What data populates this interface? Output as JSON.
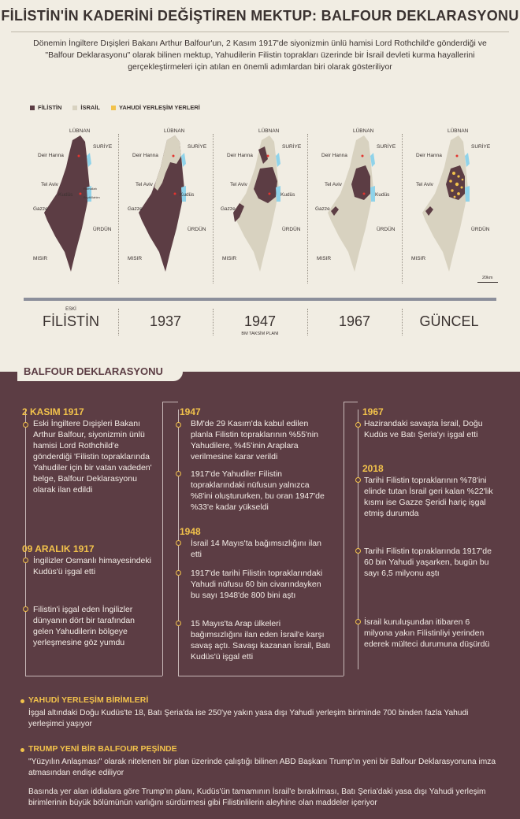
{
  "header": {
    "title": "FİLİSTİN'İN KADERİNİ DEĞİŞTİREN MEKTUP: BALFOUR DEKLARASYONU",
    "intro": "Dönemin İngiltere Dışişleri Bakanı Arthur Balfour'un, 2 Kasım 1917'de siyonizmin ünlü hamisi Lord Rothchild'e gönderdiği ve \"Balfour Deklarasyonu\" olarak bilinen mektup, Yahudilerin Filistin toprakları üzerinde bir İsrail devleti kurma hayallerini gerçekleştirmeleri için atılan en önemli adımlardan biri olarak gösteriliyor"
  },
  "legend": {
    "items": [
      {
        "label": "FİLİSTİN",
        "color": "#5c3d44"
      },
      {
        "label": "İSRAİL",
        "color": "#d8d2c0"
      },
      {
        "label": "YAHUDİ YERLEŞİM YERLERİ",
        "color": "#f2c24b"
      }
    ]
  },
  "map_labels": {
    "lebanon": "LÜBNAN",
    "syria": "SURİYE",
    "jordan": "ÜRDÜN",
    "egypt": "MISIR",
    "deir_hanna": "Deir Hanna",
    "tel_aviv": "Tel Aviv",
    "jerusalem": "Kudüs",
    "gaza": "Gazze",
    "ramallah": "Ramallah",
    "beytullahim": "Beytüllahim"
  },
  "maps": [
    {
      "icon": "map-palestine-historic-icon"
    },
    {
      "icon": "map-palestine-1937-icon"
    },
    {
      "icon": "map-palestine-1947-icon"
    },
    {
      "icon": "map-palestine-1967-icon"
    },
    {
      "icon": "map-palestine-current-icon"
    }
  ],
  "scale": "20km",
  "periods": [
    {
      "pre": "ESKİ",
      "year": "FİLİSTİN",
      "sub": ""
    },
    {
      "pre": "",
      "year": "1937",
      "sub": ""
    },
    {
      "pre": "",
      "year": "1947",
      "sub": "BM TAKSİM PLANI"
    },
    {
      "pre": "",
      "year": "1967",
      "sub": ""
    },
    {
      "pre": "",
      "year": "GÜNCEL",
      "sub": ""
    }
  ],
  "section": {
    "title": "BALFOUR DEKLARASYONU"
  },
  "timeline": {
    "col1": [
      {
        "date": "2 KASIM 1917",
        "text": "Eski İngiltere Dışişleri Bakanı Arthur Balfour, siyonizmin ünlü hamisi Lord Rothchild'e gönderdiği 'Filistin topraklarında Yahudiler için bir vatan vadeden' belge, Balfour Deklarasyonu olarak ilan edildi"
      },
      {
        "date": "09 ARALIK 1917",
        "text": "İngilizler Osmanlı himayesindeki Kudüs'ü işgal etti"
      },
      {
        "date": "",
        "text": "Filistin'i işgal eden İngilizler dünyanın dört bir tarafından gelen Yahudilerin bölgeye yerleşmesine göz yumdu"
      }
    ],
    "col2": [
      {
        "date": "1947",
        "text": "BM'de 29 Kasım'da kabul edilen planla Filistin topraklarının %55'nin Yahudilere, %45'inin Araplara verilmesine karar verildi"
      },
      {
        "date": "",
        "text": "1917'de Yahudiler Filistin topraklarındaki nüfusun yalnızca %8'ini oluştururken, bu oran 1947'de %33'e kadar yükseldi"
      },
      {
        "date": "1948",
        "text": "İsrail 14 Mayıs'ta bağımsızlığını ilan etti"
      },
      {
        "date": "",
        "text": "1917'de tarihi Filistin topraklarındaki Yahudi nüfusu 60 bin civarındayken bu sayı 1948'de 800 bini aştı"
      },
      {
        "date": "",
        "text": "15 Mayıs'ta Arap ülkeleri bağımsızlığını ilan eden İsrail'e karşı savaş açtı. Savaşı kazanan İsrail, Batı Kudüs'ü işgal etti"
      }
    ],
    "col3": [
      {
        "date": "1967",
        "text": "Hazirandaki savaşta İsrail, Doğu Kudüs ve Batı Şeria'yı işgal etti"
      },
      {
        "date": "2018",
        "text": "Tarihi Filistin topraklarının %78'ini elinde tutan İsrail geri kalan %22'lik kısmı ise Gazze Şeridi hariç işgal etmiş durumda"
      },
      {
        "date": "",
        "text": "Tarihi Filistin topraklarında 1917'de 60 bin Yahudi yaşarken, bugün bu sayı 6,5 milyonu aştı"
      },
      {
        "date": "",
        "text": "İsrail kuruluşundan itibaren 6 milyona yakın Filistinliyi yerinden ederek mülteci durumuna düşürdü"
      }
    ]
  },
  "footer": {
    "settlements_title": "YAHUDİ YERLEŞİM BİRİMLERİ",
    "settlements_text": "İşgal altındaki Doğu Kudüs'te 18, Batı Şeria'da ise 250'ye yakın yasa dışı Yahudi yerleşim biriminde 700 binden fazla Yahudi yerleşimci yaşıyor",
    "trump_title": "TRUMP YENİ BİR BALFOUR PEŞİNDE",
    "trump_text1": "\"Yüzyılın Anlaşması\" olarak nitelenen bir plan üzerinde çalıştığı bilinen ABD Başkanı Trump'ın yeni bir Balfour Deklarasyonuna imza atmasından endişe ediliyor",
    "trump_text2": "Basında yer alan iddialara göre Trump'ın planı, Kudüs'ün tamamının İsrail'e bırakılması, Batı Şeria'daki yasa dışı Yahudi yerleşim birimlerinin büyük bölümünün varlığını sürdürmesi gibi Filistinlilerin aleyhine olan maddeler içeriyor"
  },
  "colors": {
    "palestine": "#5c3d44",
    "israel": "#d8d2c0",
    "settlements": "#f2c24b",
    "water": "#8fd3ea",
    "background": "#f1ede3"
  }
}
